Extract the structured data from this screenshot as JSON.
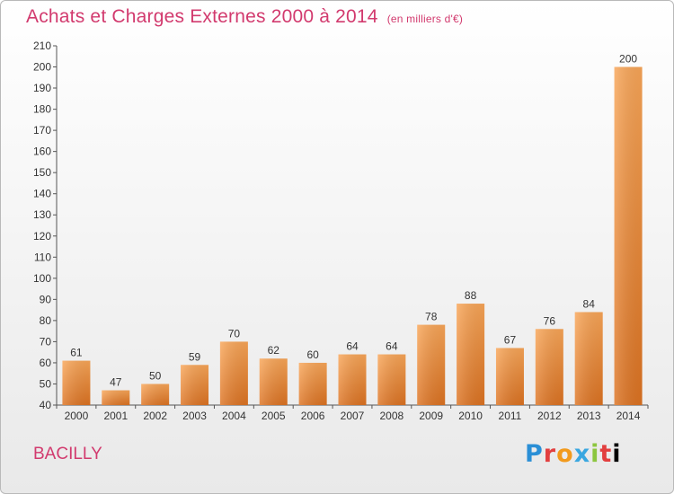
{
  "header": {
    "title": "Achats et Charges Externes 2000 à 2014",
    "unit": "(en milliers d'€)"
  },
  "commune": "BACILLY",
  "brand": {
    "letters": [
      "P",
      "r",
      "o",
      "x",
      "i",
      "t",
      "i"
    ]
  },
  "colors": {
    "bar_light": "#f7a24f",
    "bar_dark": "#e07520",
    "title": "#d23a6e"
  },
  "chart_data": {
    "type": "bar",
    "title": "Achats et Charges Externes 2000 à 2014",
    "subtitle": "(en milliers d'€)",
    "categories": [
      "2000",
      "2001",
      "2002",
      "2003",
      "2004",
      "2005",
      "2006",
      "2007",
      "2008",
      "2009",
      "2010",
      "2011",
      "2012",
      "2013",
      "2014"
    ],
    "values": [
      61,
      47,
      50,
      59,
      70,
      62,
      60,
      64,
      64,
      78,
      88,
      67,
      76,
      84,
      200
    ],
    "ylim": [
      40,
      210
    ],
    "yticks": [
      40,
      50,
      60,
      70,
      80,
      90,
      100,
      110,
      120,
      130,
      140,
      150,
      160,
      170,
      180,
      190,
      200,
      210
    ],
    "grid": false,
    "legend": "none"
  }
}
